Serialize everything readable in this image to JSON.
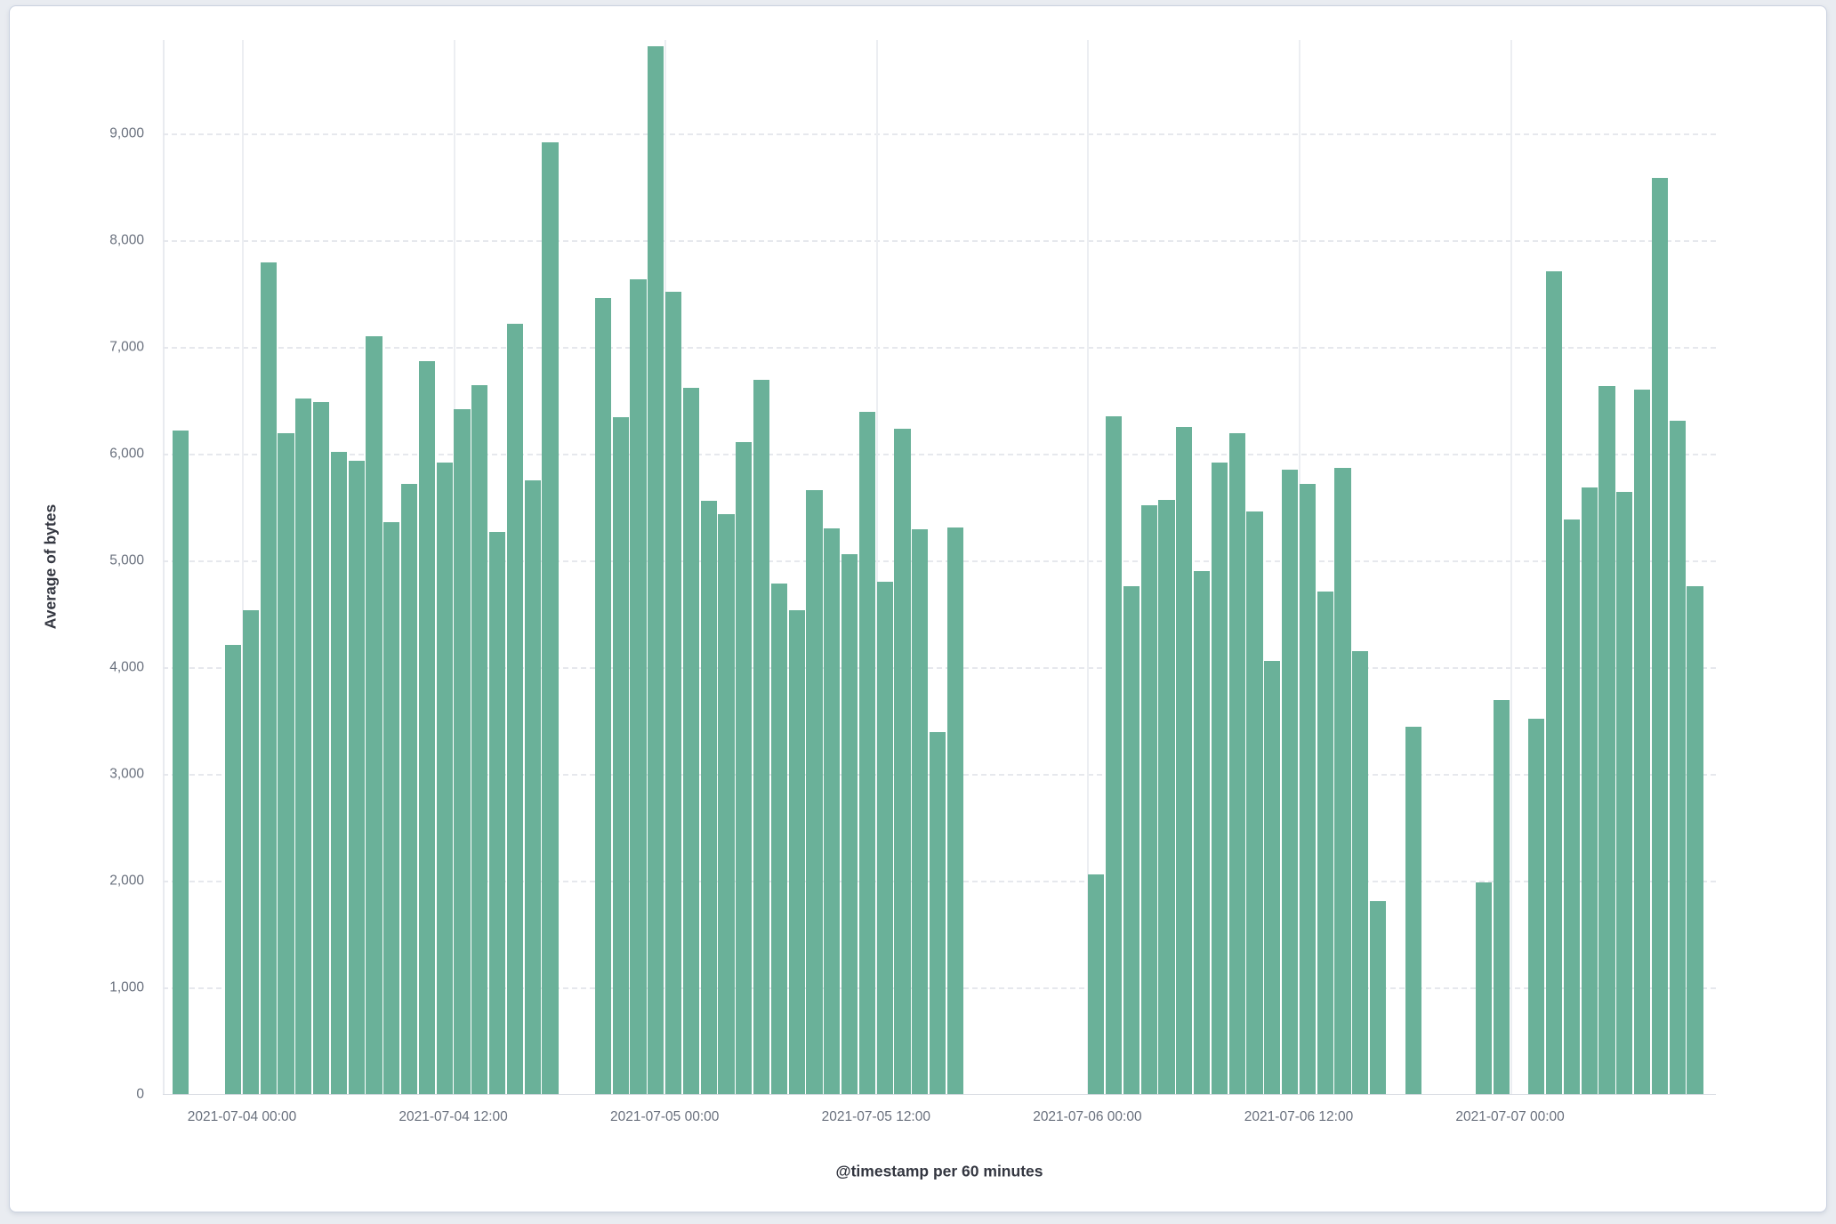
{
  "colors": {
    "page_bg": "#e9ecf1",
    "panel_bg": "#ffffff",
    "panel_border": "#cbd2e0",
    "bar": "#6ab199",
    "gridline_dashed": "#e6e8ed",
    "gridline_solid": "#eceef2",
    "tick_text": "#69707d",
    "title_text": "#343741"
  },
  "chart_data": {
    "type": "bar",
    "title": "",
    "xlabel": "@timestamp per 60 minutes",
    "ylabel": "Average of bytes",
    "bucket_interval": "60 minutes",
    "legend": "none",
    "grid": "on",
    "ylim": [
      0,
      9875
    ],
    "y_ticks": [
      0,
      1000,
      2000,
      3000,
      4000,
      5000,
      6000,
      7000,
      8000,
      9000
    ],
    "x_tick_labels": [
      "2021-07-04 00:00",
      "2021-07-04 12:00",
      "2021-07-05 00:00",
      "2021-07-05 12:00",
      "2021-07-06 00:00",
      "2021-07-06 12:00",
      "2021-07-07 00:00"
    ],
    "x_tick_hours_from_origin": [
      0,
      12,
      24,
      36,
      48,
      60,
      72
    ],
    "x_origin": "2021-07-04 00:00",
    "points": [
      {
        "t": "2021-07-03 20:00",
        "v": 6220
      },
      {
        "t": "2021-07-03 23:00",
        "v": 4210
      },
      {
        "t": "2021-07-04 00:00",
        "v": 4530
      },
      {
        "t": "2021-07-04 01:00",
        "v": 7790
      },
      {
        "t": "2021-07-04 02:00",
        "v": 6190
      },
      {
        "t": "2021-07-04 03:00",
        "v": 6520
      },
      {
        "t": "2021-07-04 04:00",
        "v": 6480
      },
      {
        "t": "2021-07-04 05:00",
        "v": 6020
      },
      {
        "t": "2021-07-04 06:00",
        "v": 5930
      },
      {
        "t": "2021-07-04 07:00",
        "v": 7100
      },
      {
        "t": "2021-07-04 08:00",
        "v": 5360
      },
      {
        "t": "2021-07-04 09:00",
        "v": 5720
      },
      {
        "t": "2021-07-04 10:00",
        "v": 6870
      },
      {
        "t": "2021-07-04 11:00",
        "v": 5920
      },
      {
        "t": "2021-07-04 12:00",
        "v": 6420
      },
      {
        "t": "2021-07-04 13:00",
        "v": 6640
      },
      {
        "t": "2021-07-04 14:00",
        "v": 5270
      },
      {
        "t": "2021-07-04 15:00",
        "v": 7220
      },
      {
        "t": "2021-07-04 16:00",
        "v": 5750
      },
      {
        "t": "2021-07-04 17:00",
        "v": 8920
      },
      {
        "t": "2021-07-04 20:00",
        "v": 7460
      },
      {
        "t": "2021-07-04 21:00",
        "v": 6340
      },
      {
        "t": "2021-07-04 22:00",
        "v": 7630
      },
      {
        "t": "2021-07-04 23:00",
        "v": 9820
      },
      {
        "t": "2021-07-05 00:00",
        "v": 7520
      },
      {
        "t": "2021-07-05 01:00",
        "v": 6620
      },
      {
        "t": "2021-07-05 02:00",
        "v": 5560
      },
      {
        "t": "2021-07-05 03:00",
        "v": 5430
      },
      {
        "t": "2021-07-05 04:00",
        "v": 6110
      },
      {
        "t": "2021-07-05 05:00",
        "v": 6690
      },
      {
        "t": "2021-07-05 06:00",
        "v": 4780
      },
      {
        "t": "2021-07-05 07:00",
        "v": 4530
      },
      {
        "t": "2021-07-05 08:00",
        "v": 5660
      },
      {
        "t": "2021-07-05 09:00",
        "v": 5300
      },
      {
        "t": "2021-07-05 10:00",
        "v": 5060
      },
      {
        "t": "2021-07-05 11:00",
        "v": 6390
      },
      {
        "t": "2021-07-05 12:00",
        "v": 4800
      },
      {
        "t": "2021-07-05 13:00",
        "v": 6230
      },
      {
        "t": "2021-07-05 14:00",
        "v": 5290
      },
      {
        "t": "2021-07-05 15:00",
        "v": 3390
      },
      {
        "t": "2021-07-05 16:00",
        "v": 5310
      },
      {
        "t": "2021-07-06 00:00",
        "v": 2060
      },
      {
        "t": "2021-07-06 01:00",
        "v": 6350
      },
      {
        "t": "2021-07-06 02:00",
        "v": 4760
      },
      {
        "t": "2021-07-06 03:00",
        "v": 5520
      },
      {
        "t": "2021-07-06 04:00",
        "v": 5570
      },
      {
        "t": "2021-07-06 05:00",
        "v": 6250
      },
      {
        "t": "2021-07-06 06:00",
        "v": 4900
      },
      {
        "t": "2021-07-06 07:00",
        "v": 5920
      },
      {
        "t": "2021-07-06 08:00",
        "v": 6190
      },
      {
        "t": "2021-07-06 09:00",
        "v": 5460
      },
      {
        "t": "2021-07-06 10:00",
        "v": 4060
      },
      {
        "t": "2021-07-06 11:00",
        "v": 5850
      },
      {
        "t": "2021-07-06 12:00",
        "v": 5720
      },
      {
        "t": "2021-07-06 13:00",
        "v": 4710
      },
      {
        "t": "2021-07-06 14:00",
        "v": 5870
      },
      {
        "t": "2021-07-06 15:00",
        "v": 4150
      },
      {
        "t": "2021-07-06 16:00",
        "v": 1810
      },
      {
        "t": "2021-07-06 18:00",
        "v": 3440
      },
      {
        "t": "2021-07-06 22:00",
        "v": 1980
      },
      {
        "t": "2021-07-06 23:00",
        "v": 3690
      },
      {
        "t": "2021-07-07 01:00",
        "v": 3520
      },
      {
        "t": "2021-07-07 02:00",
        "v": 7710
      },
      {
        "t": "2021-07-07 03:00",
        "v": 5380
      },
      {
        "t": "2021-07-07 04:00",
        "v": 5680
      },
      {
        "t": "2021-07-07 05:00",
        "v": 6630
      },
      {
        "t": "2021-07-07 06:00",
        "v": 5640
      },
      {
        "t": "2021-07-07 07:00",
        "v": 6600
      },
      {
        "t": "2021-07-07 08:00",
        "v": 8580
      },
      {
        "t": "2021-07-07 09:00",
        "v": 6310
      },
      {
        "t": "2021-07-07 10:00",
        "v": 4760
      }
    ]
  }
}
